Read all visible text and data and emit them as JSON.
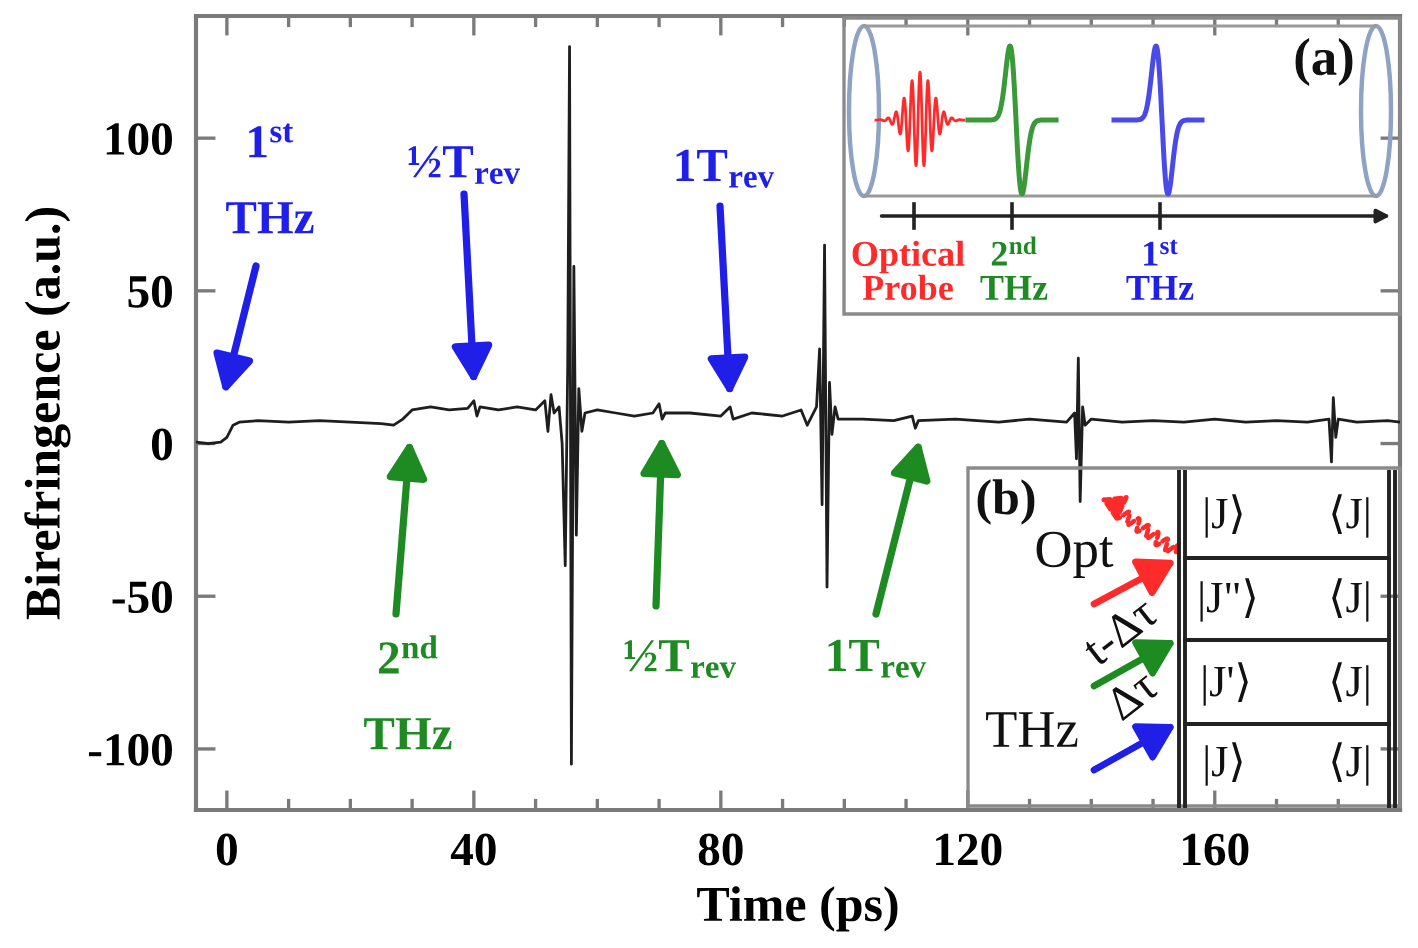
{
  "chart_data": {
    "type": "line",
    "xlabel": "Time (ps)",
    "ylabel": "Birefringence (a.u.)",
    "xlim": [
      -5,
      190
    ],
    "ylim": [
      -120,
      140
    ],
    "xticks": [
      0,
      40,
      80,
      120,
      160
    ],
    "yticks": [
      -100,
      -50,
      0,
      50,
      100
    ],
    "x": [
      -5,
      -3,
      -1,
      0,
      1,
      2,
      5,
      10,
      15,
      20,
      25,
      27,
      28.5,
      30,
      33,
      36,
      39,
      40,
      40.5,
      41,
      44,
      47,
      50,
      51.5,
      52,
      52.5,
      53,
      53.8,
      54.3,
      54.8,
      55.2,
      55.5,
      55.8,
      56.2,
      56.6,
      57,
      57.5,
      58,
      60,
      63,
      66,
      69,
      70,
      70.5,
      71,
      75,
      80,
      81.5,
      82,
      85,
      90,
      93,
      94,
      95.5,
      96,
      96.4,
      96.8,
      97.2,
      97.6,
      98,
      98.5,
      99,
      103,
      108,
      111,
      111.5,
      112,
      118,
      125,
      130,
      136,
      137.3,
      137.6,
      137.9,
      138.2,
      138.6,
      139,
      140,
      145,
      150,
      155,
      160,
      165,
      170,
      175,
      178.5,
      178.9,
      179.2,
      179.6,
      180,
      183,
      188,
      190
    ],
    "series": [
      {
        "color": "#1e1e1e",
        "values": [
          0.5,
          0,
          0.5,
          2,
          6,
          7,
          7.5,
          7,
          7.5,
          7,
          6.5,
          6,
          8,
          11,
          12,
          11,
          11.5,
          14,
          9,
          12,
          11,
          12,
          11,
          14,
          4,
          16,
          10,
          12,
          0,
          -40,
          25,
          130,
          -105,
          58,
          -30,
          18,
          4,
          10,
          11,
          10,
          9,
          10,
          13,
          8,
          10,
          10,
          9,
          12,
          8,
          10,
          9,
          11,
          6,
          12,
          31,
          -20,
          65,
          -47,
          20,
          3,
          12,
          8,
          8,
          7.5,
          9,
          5,
          7.5,
          8,
          7,
          8,
          7,
          10,
          -5,
          28,
          -19,
          12,
          6,
          8,
          7,
          7.5,
          7,
          8,
          7,
          7.5,
          7,
          8,
          -6,
          15,
          2,
          8,
          7,
          7.5,
          7
        ]
      }
    ],
    "annotations": [
      "1$^{st}$\nTHz",
      "½T$_{rev}$",
      "1T$_{rev}$",
      "2$^{nd}$\nTHz",
      "½T$_{rev}$",
      "1T$_{rev}$",
      "(a)",
      "Optical\nProbe",
      "2$^{nd}$\nTHz",
      "1$^{st}$\nTHz",
      "(b)",
      "Opt",
      "t-Δτ",
      "Δτ",
      "THz",
      "|J⟩",
      "⟨J|",
      "|J\"⟩",
      "⟨J|",
      "|J'⟩",
      "⟨J|",
      "|J⟩",
      "⟨J|"
    ]
  }
}
